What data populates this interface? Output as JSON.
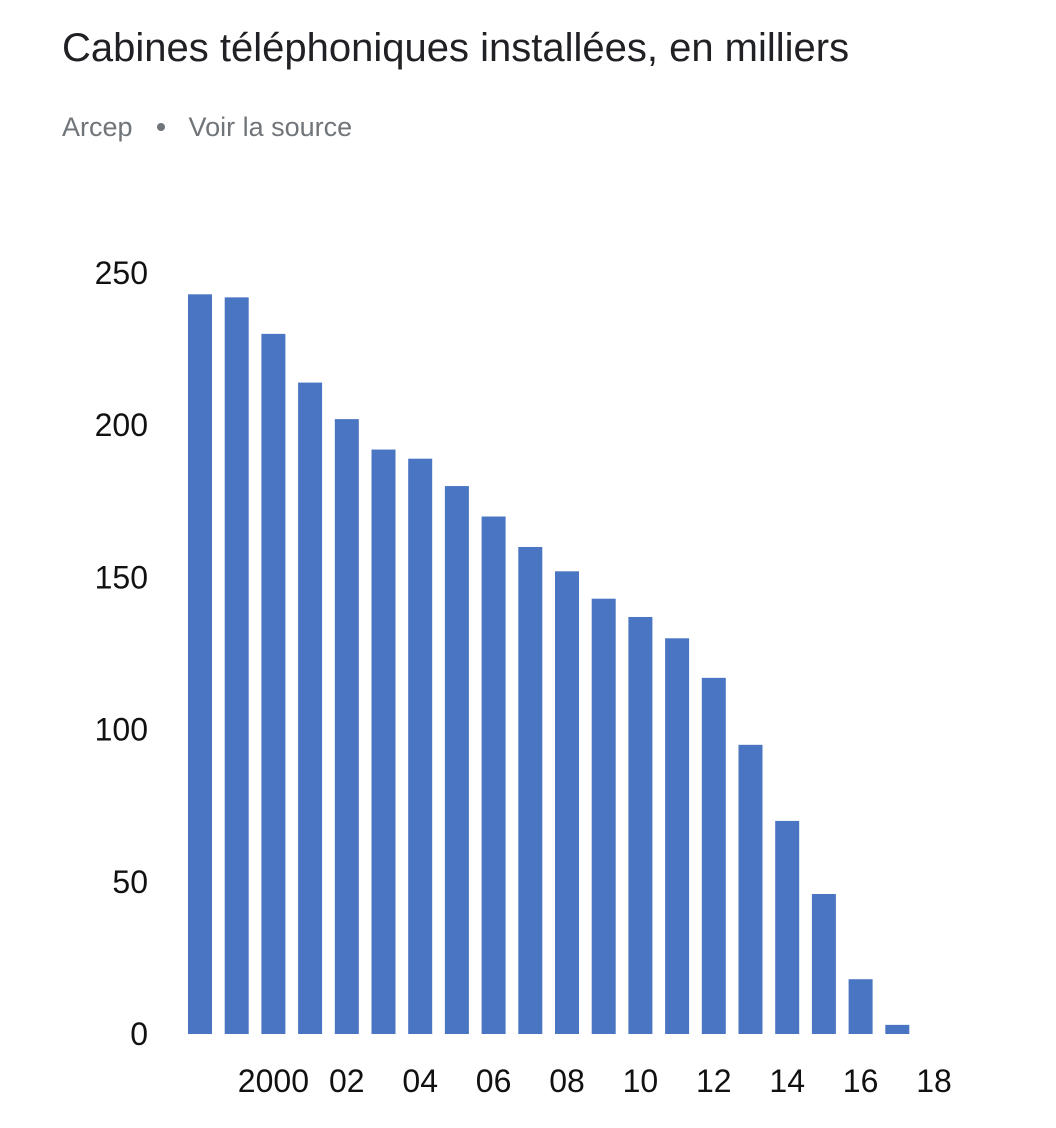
{
  "header": {
    "title": "Cabines téléphoniques installées, en milliers",
    "source_name": "Arcep",
    "source_link": "Voir la source"
  },
  "chart_data": {
    "type": "bar",
    "title": "Cabines téléphoniques installées, en milliers",
    "xlabel": "",
    "ylabel": "",
    "bar_color": "#4a75c2",
    "categories": [
      "1998",
      "1999",
      "2000",
      "2001",
      "2002",
      "2003",
      "2004",
      "2005",
      "2006",
      "2007",
      "2008",
      "2009",
      "2010",
      "2011",
      "2012",
      "2013",
      "2014",
      "2015",
      "2016",
      "2017"
    ],
    "values": [
      243,
      242,
      230,
      214,
      202,
      192,
      189,
      180,
      170,
      160,
      152,
      143,
      137,
      130,
      117,
      95,
      70,
      46,
      18,
      3
    ],
    "ylim": [
      0,
      250
    ],
    "yticks": [
      "0",
      "50",
      "100",
      "150",
      "200",
      "250"
    ],
    "xtick_labels": [
      "2000",
      "02",
      "04",
      "06",
      "08",
      "10",
      "12",
      "14",
      "16",
      "18"
    ],
    "xtick_years": [
      2000,
      2002,
      2004,
      2006,
      2008,
      2010,
      2012,
      2014,
      2016,
      2018
    ],
    "grid": false,
    "legend": "none"
  }
}
